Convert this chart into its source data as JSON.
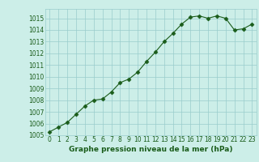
{
  "x": [
    0,
    1,
    2,
    3,
    4,
    5,
    6,
    7,
    8,
    9,
    10,
    11,
    12,
    13,
    14,
    15,
    16,
    17,
    18,
    19,
    20,
    21,
    22,
    23
  ],
  "y": [
    1005.3,
    1005.7,
    1006.1,
    1006.8,
    1007.5,
    1008.0,
    1008.1,
    1008.7,
    1009.5,
    1009.8,
    1010.4,
    1011.3,
    1012.1,
    1013.0,
    1013.7,
    1014.5,
    1015.1,
    1015.2,
    1015.0,
    1015.2,
    1015.0,
    1014.0,
    1014.1,
    1014.5
  ],
  "xlim": [
    -0.5,
    23.5
  ],
  "ylim": [
    1005,
    1015.8
  ],
  "yticks": [
    1005,
    1006,
    1007,
    1008,
    1009,
    1010,
    1011,
    1012,
    1013,
    1014,
    1015
  ],
  "xticks": [
    0,
    1,
    2,
    3,
    4,
    5,
    6,
    7,
    8,
    9,
    10,
    11,
    12,
    13,
    14,
    15,
    16,
    17,
    18,
    19,
    20,
    21,
    22,
    23
  ],
  "xlabel": "Graphe pression niveau de la mer (hPa)",
  "line_color": "#1a5c1a",
  "marker": "D",
  "marker_size": 2.5,
  "line_width": 0.8,
  "bg_color": "#cceee8",
  "grid_color": "#99cccc",
  "tick_fontsize": 5.5,
  "label_fontsize": 6.5,
  "tick_color": "#1a5c1a",
  "label_color": "#1a5c1a"
}
